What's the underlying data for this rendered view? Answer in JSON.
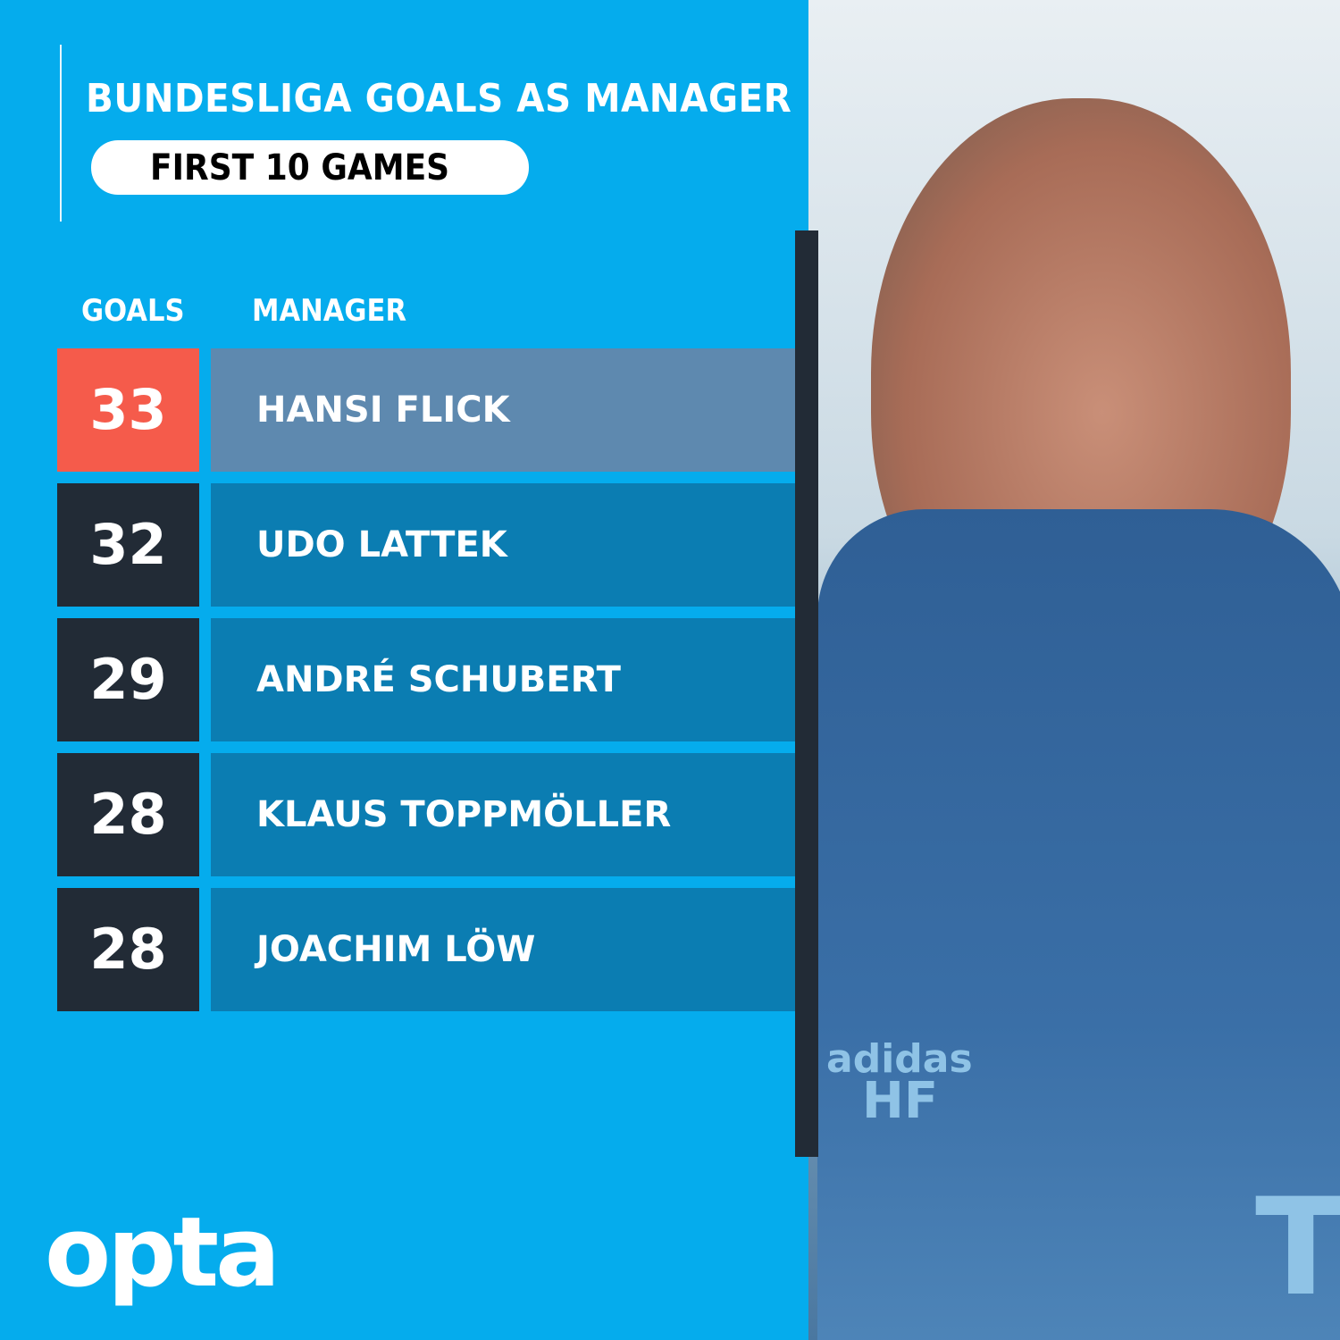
{
  "title": "BUNDESLIGA GOALS AS MANAGER",
  "subtitle": "FIRST 10 GAMES",
  "headers": {
    "goals": "GOALS",
    "manager": "MANAGER"
  },
  "brand": "opta",
  "colors": {
    "background": "#05aced",
    "highlight_goals": "#f55b4b",
    "goals_box": "#222b36",
    "row": "#0b7db2",
    "highlight_row": "#5e89af"
  },
  "chart_data": {
    "type": "table",
    "title": "BUNDESLIGA GOALS AS MANAGER",
    "subtitle": "FIRST 10 GAMES",
    "columns": [
      "GOALS",
      "MANAGER"
    ],
    "rows": [
      {
        "goals": "33",
        "manager": "HANSI FLICK",
        "highlight": true
      },
      {
        "goals": "32",
        "manager": "UDO LATTEK"
      },
      {
        "goals": "29",
        "manager": "ANDRÉ SCHUBERT"
      },
      {
        "goals": "28",
        "manager": "KLAUS TOPPMÖLLER"
      },
      {
        "goals": "28",
        "manager": "JOACHIM LÖW"
      }
    ]
  },
  "photo": {
    "jacket_text": "adidas",
    "initials": "HF",
    "sponsor": "T"
  }
}
